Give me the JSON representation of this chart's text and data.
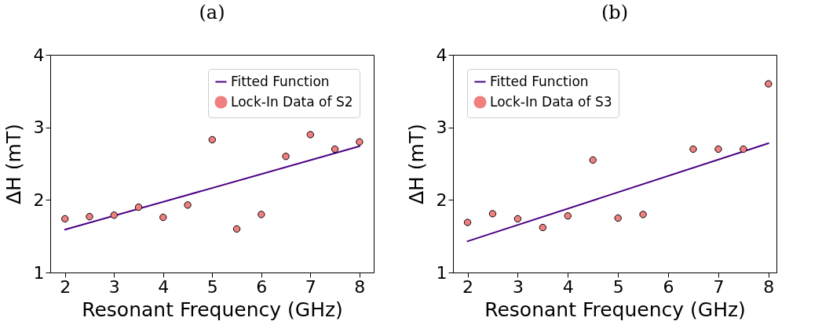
{
  "chart_data": [
    {
      "type": "scatter",
      "title": "(a)",
      "xlabel": "Resonant Frequency (GHz)",
      "ylabel": "ΔH (mT)",
      "xlim": [
        1.7,
        8.29
      ],
      "ylim": [
        1,
        4
      ],
      "xticks": [
        2,
        3,
        4,
        5,
        6,
        7,
        8
      ],
      "yticks": [
        1,
        2,
        3,
        4
      ],
      "grid": false,
      "legend": "top right",
      "series": [
        {
          "type": "line",
          "name": "Fitted Function",
          "color": "#4b0082",
          "x": [
            2,
            8
          ],
          "values": [
            1.59,
            2.74
          ]
        },
        {
          "name": "Lock-In Data of S2",
          "color": "#f08080",
          "marker": "circle",
          "x": [
            2,
            2.5,
            3,
            3.5,
            4,
            4.5,
            5,
            5.5,
            6,
            6.5,
            7,
            7.5,
            8
          ],
          "values": [
            1.74,
            1.77,
            1.79,
            1.9,
            1.76,
            1.93,
            2.83,
            1.6,
            1.8,
            2.6,
            2.9,
            2.7,
            2.8
          ]
        }
      ]
    },
    {
      "type": "scatter",
      "title": "(b)",
      "xlabel": "Resonant Frequency (GHz)",
      "ylabel": "ΔH (mT)",
      "xlim": [
        1.71,
        8.16
      ],
      "ylim": [
        1,
        4
      ],
      "xticks": [
        2,
        3,
        4,
        5,
        6,
        7,
        8
      ],
      "yticks": [
        1,
        2,
        3,
        4
      ],
      "grid": false,
      "legend": "top left",
      "series": [
        {
          "type": "line",
          "name": "Fitted Function",
          "color": "#4b0082",
          "x": [
            2,
            8
          ],
          "values": [
            1.43,
            2.78
          ]
        },
        {
          "name": "Lock-In Data of S3",
          "color": "#f08080",
          "marker": "circle",
          "x": [
            2,
            2.5,
            3,
            3.5,
            4,
            4.5,
            5,
            5.5,
            6.5,
            7,
            7.5,
            8
          ],
          "values": [
            1.69,
            1.81,
            1.74,
            1.62,
            1.78,
            2.55,
            1.75,
            1.8,
            2.7,
            2.7,
            2.7,
            3.6
          ]
        }
      ]
    }
  ]
}
